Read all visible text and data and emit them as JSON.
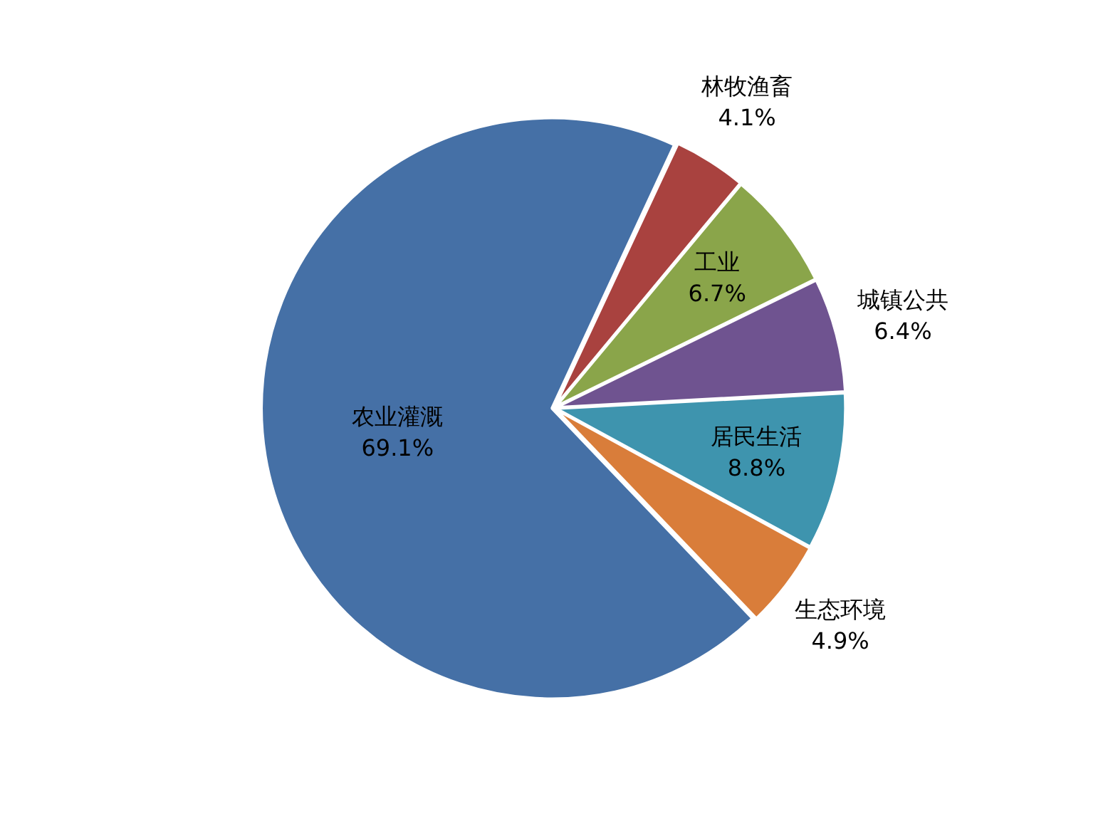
{
  "chart_data": {
    "type": "pie",
    "categories": [
      "林牧渔畜",
      "工业",
      "城镇公共",
      "居民生活",
      "生态环境",
      "农业灌溉"
    ],
    "values": [
      4.1,
      6.7,
      6.4,
      8.8,
      4.9,
      69.1
    ],
    "value_labels": [
      "4.1%",
      "6.7%",
      "6.4%",
      "8.8%",
      "4.9%",
      "69.1%"
    ],
    "colors": [
      "#a9423f",
      "#8aa54a",
      "#6f5390",
      "#3e94ae",
      "#d97d3a",
      "#4570a6"
    ],
    "legend": false
  }
}
